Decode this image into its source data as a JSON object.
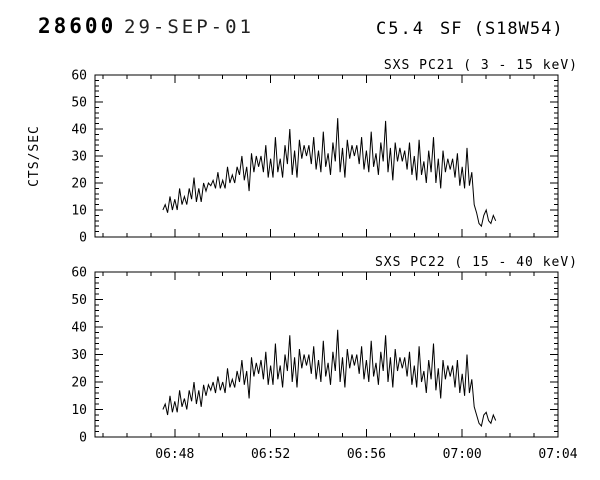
{
  "header": {
    "event_number": "28600",
    "date": "29-SEP-01",
    "goes_class": "C5.4",
    "flare_type": "SF (S18W54)"
  },
  "chart_data": [
    {
      "type": "line",
      "title": "SXS PC21 (  3 - 15 keV)",
      "ylabel": "CTS/SEC",
      "ylim": [
        0,
        60
      ],
      "yticks": [
        0,
        10,
        20,
        30,
        40,
        50,
        60
      ],
      "y_minor_step": 2,
      "x_start": "06:44:40",
      "x_end": "07:04:00",
      "x_ticks": [
        "06:48:00",
        "06:52:00",
        "06:56:00",
        "07:00:00",
        "07:04:00"
      ],
      "x_tick_labels": [
        "06:48",
        "06:52",
        "06:56",
        "07:00",
        "07:04"
      ],
      "x_minor_every_seconds": 60,
      "show_x_labels": false,
      "grid": false,
      "legend": "none",
      "series_start": "06:47:30",
      "series_step_seconds": 6,
      "values": [
        10,
        12,
        9,
        15,
        10,
        14,
        10,
        18,
        12,
        15,
        12,
        18,
        14,
        22,
        13,
        18,
        13,
        20,
        17,
        20,
        19,
        21,
        18,
        24,
        18,
        21,
        18,
        26,
        20,
        23,
        20,
        26,
        23,
        30,
        21,
        26,
        17,
        31,
        24,
        30,
        26,
        30,
        24,
        34,
        22,
        29,
        22,
        37,
        24,
        29,
        22,
        34,
        27,
        40,
        23,
        32,
        22,
        36,
        29,
        34,
        30,
        34,
        27,
        37,
        25,
        32,
        24,
        39,
        26,
        31,
        23,
        35,
        28,
        44,
        24,
        33,
        22,
        36,
        29,
        34,
        30,
        34,
        27,
        37,
        25,
        32,
        24,
        39,
        26,
        31,
        23,
        35,
        28,
        43,
        24,
        33,
        21,
        35,
        28,
        33,
        28,
        32,
        25,
        35,
        23,
        30,
        21,
        36,
        23,
        28,
        20,
        32,
        24,
        37,
        20,
        29,
        18,
        32,
        24,
        29,
        25,
        29,
        22,
        31,
        19,
        26,
        18,
        33,
        19,
        24,
        12,
        9,
        5,
        4,
        8,
        10,
        6,
        5,
        8,
        6
      ]
    },
    {
      "type": "line",
      "title": "SXS PC22 ( 15 - 40 keV)",
      "ylabel": "",
      "ylim": [
        0,
        60
      ],
      "yticks": [
        0,
        10,
        20,
        30,
        40,
        50,
        60
      ],
      "y_minor_step": 2,
      "x_start": "06:44:40",
      "x_end": "07:04:00",
      "x_ticks": [
        "06:48:00",
        "06:52:00",
        "06:56:00",
        "07:00:00",
        "07:04:00"
      ],
      "x_tick_labels": [
        "06:48",
        "06:52",
        "06:56",
        "07:00",
        "07:04"
      ],
      "x_minor_every_seconds": 60,
      "show_x_labels": true,
      "grid": false,
      "legend": "none",
      "series_start": "06:47:30",
      "series_step_seconds": 6,
      "values": [
        10,
        12,
        8,
        15,
        9,
        13,
        9,
        17,
        11,
        14,
        10,
        17,
        13,
        20,
        12,
        17,
        11,
        19,
        15,
        19,
        17,
        20,
        16,
        22,
        17,
        20,
        16,
        25,
        18,
        21,
        18,
        24,
        20,
        28,
        19,
        24,
        14,
        29,
        22,
        27,
        23,
        28,
        21,
        31,
        19,
        26,
        19,
        34,
        21,
        26,
        18,
        30,
        24,
        37,
        20,
        29,
        18,
        32,
        25,
        30,
        26,
        30,
        23,
        33,
        21,
        28,
        20,
        35,
        22,
        27,
        19,
        31,
        24,
        39,
        20,
        29,
        18,
        32,
        25,
        30,
        26,
        30,
        23,
        33,
        21,
        28,
        20,
        35,
        22,
        27,
        19,
        31,
        24,
        37,
        20,
        29,
        18,
        32,
        24,
        29,
        25,
        29,
        22,
        31,
        19,
        26,
        18,
        33,
        20,
        24,
        16,
        28,
        21,
        34,
        17,
        25,
        14,
        28,
        21,
        26,
        22,
        26,
        18,
        28,
        16,
        23,
        15,
        30,
        16,
        21,
        11,
        8,
        5,
        4,
        8,
        9,
        6,
        5,
        8,
        6
      ]
    }
  ]
}
